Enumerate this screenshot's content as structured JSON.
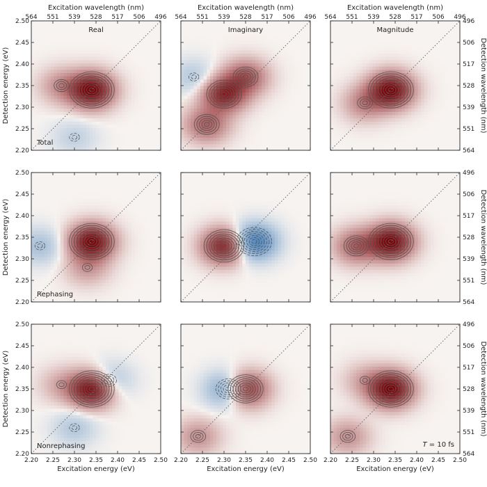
{
  "chart_data": {
    "type": "heatmap",
    "layout": "3x3 grid of 2D spectra, shared axes",
    "x_axis": {
      "label": "Excitation energy (eV)",
      "range": [
        2.2,
        2.5
      ],
      "ticks": [
        "2.20",
        "2.25",
        "2.30",
        "2.35",
        "2.40",
        "2.45",
        "2.50"
      ]
    },
    "y_axis": {
      "label": "Detection energy (eV)",
      "range": [
        2.2,
        2.5
      ],
      "ticks": [
        "2.20",
        "2.25",
        "2.30",
        "2.35",
        "2.40",
        "2.45",
        "2.50"
      ]
    },
    "top_axis": {
      "label": "Excitation wavelength (nm)",
      "ticks": [
        "564",
        "551",
        "539",
        "528",
        "517",
        "506",
        "496"
      ]
    },
    "right_axis": {
      "label": "Detection wavelength (nm)",
      "ticks": [
        "496",
        "506",
        "517",
        "528",
        "539",
        "551",
        "564"
      ]
    },
    "column_titles": [
      "Real",
      "Imaginary",
      "Magnitude"
    ],
    "row_labels": [
      "Total",
      "Rephasing",
      "Nonrephasing"
    ],
    "annotation": "T = 10 fs",
    "annotation_prefix": "T",
    "annotation_suffix": " = 10 fs",
    "diagonal": "dotted line x = y",
    "colors": {
      "positive": "#8b0a0a",
      "negative": "#2166ac",
      "contour": "#555555"
    },
    "panels": [
      {
        "row": "Total",
        "component": "Real",
        "peaks": [
          {
            "x": 2.34,
            "y": 2.34,
            "amp": 1.0
          },
          {
            "x": 2.27,
            "y": 2.35,
            "amp": 0.3
          },
          {
            "x": 2.3,
            "y": 2.23,
            "amp": -0.15
          }
        ]
      },
      {
        "row": "Total",
        "component": "Imaginary",
        "peaks": [
          {
            "x": 2.3,
            "y": 2.33,
            "amp": 0.8
          },
          {
            "x": 2.35,
            "y": 2.37,
            "amp": 0.55
          },
          {
            "x": 2.26,
            "y": 2.26,
            "amp": 0.5
          },
          {
            "x": 2.23,
            "y": 2.37,
            "amp": -0.2
          }
        ]
      },
      {
        "row": "Total",
        "component": "Magnitude",
        "peaks": [
          {
            "x": 2.34,
            "y": 2.34,
            "amp": 1.0
          },
          {
            "x": 2.28,
            "y": 2.31,
            "amp": 0.35
          }
        ]
      },
      {
        "row": "Rephasing",
        "component": "Real",
        "peaks": [
          {
            "x": 2.34,
            "y": 2.34,
            "amp": 1.0
          },
          {
            "x": 2.33,
            "y": 2.28,
            "amp": 0.25
          },
          {
            "x": 2.22,
            "y": 2.33,
            "amp": -0.25
          }
        ]
      },
      {
        "row": "Rephasing",
        "component": "Imaginary",
        "peaks": [
          {
            "x": 2.3,
            "y": 2.33,
            "amp": 0.85
          },
          {
            "x": 2.37,
            "y": 2.34,
            "amp": -0.75
          }
        ]
      },
      {
        "row": "Rephasing",
        "component": "Magnitude",
        "peaks": [
          {
            "x": 2.34,
            "y": 2.34,
            "amp": 1.0
          },
          {
            "x": 2.26,
            "y": 2.33,
            "amp": 0.5
          }
        ]
      },
      {
        "row": "Nonrephasing",
        "component": "Real",
        "peaks": [
          {
            "x": 2.34,
            "y": 2.35,
            "amp": 1.0
          },
          {
            "x": 2.27,
            "y": 2.36,
            "amp": 0.2
          },
          {
            "x": 2.38,
            "y": 2.37,
            "amp": -0.3
          },
          {
            "x": 2.3,
            "y": 2.26,
            "amp": -0.2
          }
        ]
      },
      {
        "row": "Nonrephasing",
        "component": "Imaginary",
        "peaks": [
          {
            "x": 2.35,
            "y": 2.35,
            "amp": 0.8
          },
          {
            "x": 2.31,
            "y": 2.35,
            "amp": -0.55
          },
          {
            "x": 2.24,
            "y": 2.24,
            "amp": 0.3
          }
        ]
      },
      {
        "row": "Nonrephasing",
        "component": "Magnitude",
        "peaks": [
          {
            "x": 2.34,
            "y": 2.35,
            "amp": 1.0
          },
          {
            "x": 2.24,
            "y": 2.24,
            "amp": 0.3
          },
          {
            "x": 2.28,
            "y": 2.37,
            "amp": 0.2
          }
        ]
      }
    ]
  }
}
